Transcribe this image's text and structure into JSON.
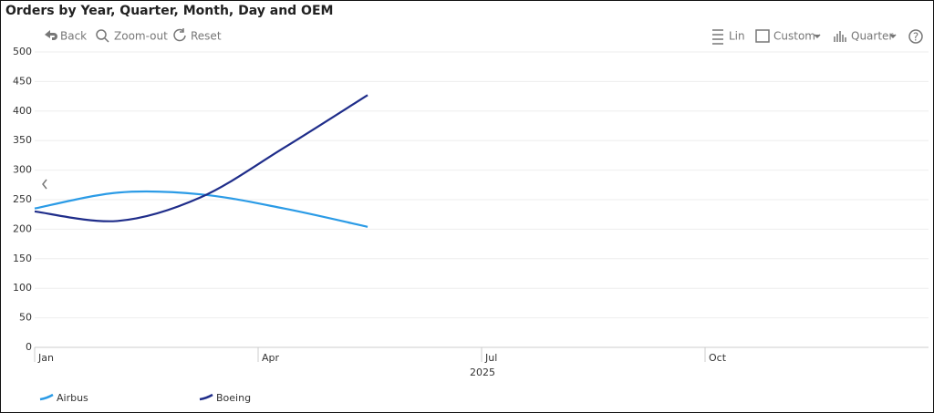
{
  "toolbar": {
    "left": [
      "Back",
      "Zoom-out",
      "Reset"
    ],
    "right": [
      "Lin",
      "Custom",
      "Quarter"
    ]
  },
  "chart_data": {
    "type": "line",
    "title": "Orders by Year, Quarter, Month, Day and OEM",
    "x": [
      0,
      1.12,
      2.23,
      3.35,
      4.47
    ],
    "series": [
      {
        "name": "Airbus",
        "color": "#2b9be6",
        "values": [
          235,
          262,
          259,
          235,
          204
        ]
      },
      {
        "name": "Boeing",
        "color": "#1f2d8a",
        "values": [
          230,
          214,
          254,
          338,
          427
        ]
      }
    ],
    "xlim": [
      0,
      12
    ],
    "xticks": [
      {
        "value": 0,
        "label": "Jan"
      },
      {
        "value": 3,
        "label": "Apr"
      },
      {
        "value": 6,
        "label": "Jul"
      },
      {
        "value": 9,
        "label": "Oct"
      }
    ],
    "xlabel": "2025",
    "ylim": [
      0,
      500
    ],
    "yticks": [
      0,
      50,
      100,
      150,
      200,
      250,
      300,
      350,
      400,
      450,
      500
    ],
    "grid": true,
    "smooth": true,
    "legend": "bottom-left"
  }
}
